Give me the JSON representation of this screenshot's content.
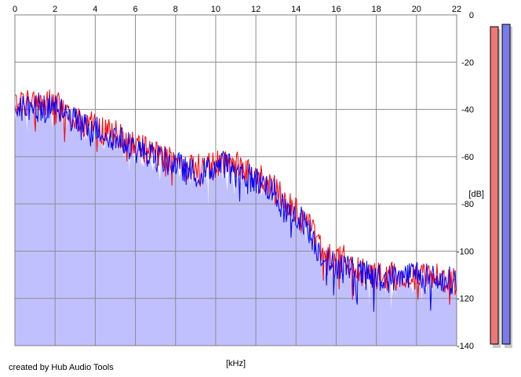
{
  "credit": "created by Hub Audio Tools",
  "chart_data": {
    "type": "area",
    "title": "",
    "xlabel": "[kHz]",
    "ylabel": "[dB]",
    "xlim": [
      0,
      22
    ],
    "ylim": [
      -140,
      0
    ],
    "xticks": [
      "0",
      "2",
      "4",
      "6",
      "8",
      "10",
      "12",
      "14",
      "16",
      "18",
      "20",
      "22"
    ],
    "yticks": [
      "0",
      "-20",
      "-40",
      "-60",
      "-80",
      "-100",
      "-120",
      "-140"
    ],
    "grid": true,
    "series": [
      {
        "color": "#ff0000",
        "x": [
          0,
          0.5,
          1,
          1.5,
          2,
          2.5,
          3,
          3.5,
          4,
          4.5,
          5,
          5.5,
          6,
          6.5,
          7,
          7.5,
          8,
          8.5,
          9,
          9.5,
          10,
          10.5,
          11,
          11.5,
          12,
          12.5,
          13,
          13.5,
          14,
          14.5,
          15,
          15.5,
          16,
          16.5,
          17,
          17.5,
          18,
          18.5,
          19,
          19.5,
          20,
          20.5,
          21,
          21.5,
          22
        ],
        "values": [
          -38,
          -37,
          -36,
          -38,
          -37,
          -40,
          -44,
          -46,
          -47,
          -50,
          -50,
          -53,
          -55,
          -57,
          -59,
          -60,
          -61,
          -64,
          -65,
          -64,
          -63,
          -62,
          -63,
          -66,
          -68,
          -70,
          -73,
          -80,
          -82,
          -86,
          -95,
          -102,
          -104,
          -103,
          -108,
          -109,
          -110,
          -111,
          -110,
          -110,
          -110,
          -110,
          -111,
          -112,
          -112
        ]
      },
      {
        "color": "#0000ff",
        "x": [
          0,
          0.5,
          1,
          1.5,
          2,
          2.5,
          3,
          3.5,
          4,
          4.5,
          5,
          5.5,
          6,
          6.5,
          7,
          7.5,
          8,
          8.5,
          9,
          9.5,
          10,
          10.5,
          11,
          11.5,
          12,
          12.5,
          13,
          13.5,
          14,
          14.5,
          15,
          15.5,
          16,
          16.5,
          17,
          17.5,
          18,
          18.5,
          19,
          19.5,
          20,
          20.5,
          21,
          21.5,
          22
        ],
        "values": [
          -40,
          -39,
          -38,
          -40,
          -38,
          -42,
          -45,
          -47,
          -48,
          -50,
          -52,
          -54,
          -57,
          -58,
          -60,
          -62,
          -63,
          -66,
          -67,
          -66,
          -64,
          -63,
          -65,
          -68,
          -70,
          -72,
          -76,
          -84,
          -85,
          -88,
          -98,
          -104,
          -106,
          -106,
          -109,
          -110,
          -111,
          -112,
          -111,
          -110,
          -109,
          -111,
          -112,
          -112,
          -113
        ]
      }
    ],
    "level_meters": [
      {
        "color": "#ee7878",
        "level": -5
      },
      {
        "color": "#7a7aee",
        "level": -4
      }
    ],
    "fill_color": "#c0c0ff"
  }
}
